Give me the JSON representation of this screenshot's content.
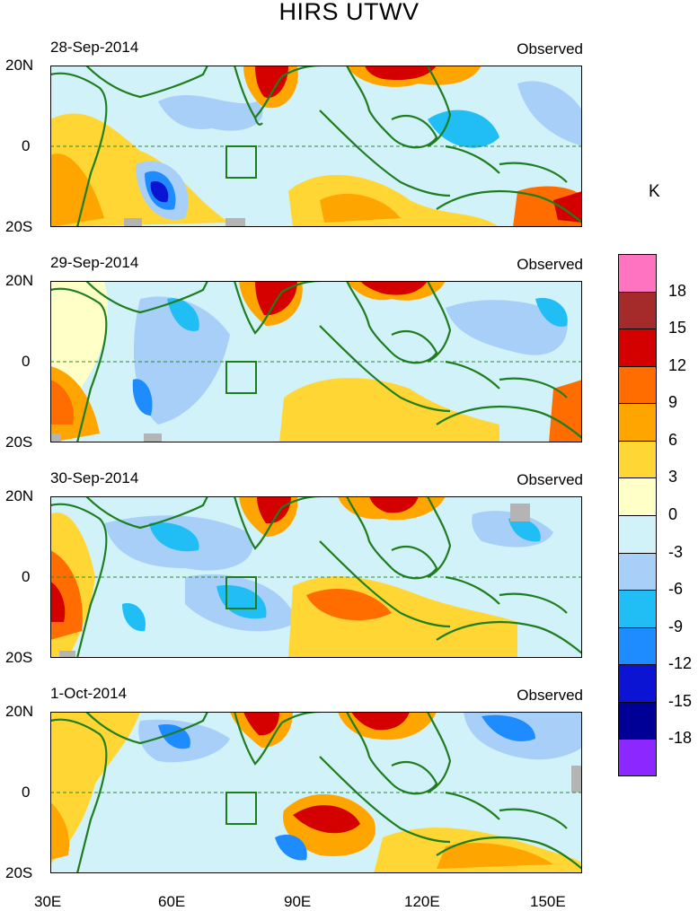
{
  "title": "HIRS UTWV",
  "unit": "K",
  "x_labels": [
    "30E",
    "60E",
    "90E",
    "120E",
    "150E"
  ],
  "y_labels": [
    "20N",
    "0",
    "20S"
  ],
  "panels": [
    {
      "date": "28-Sep-2014",
      "label": "Observed"
    },
    {
      "date": "29-Sep-2014",
      "label": "Observed"
    },
    {
      "date": "30-Sep-2014",
      "label": "Observed"
    },
    {
      "date": "1-Oct-2014",
      "label": "Observed"
    }
  ],
  "legend": {
    "labels": [
      "18",
      "15",
      "12",
      "9",
      "6",
      "3",
      "0",
      "-3",
      "-6",
      "-9",
      "-12",
      "-15",
      "-18"
    ],
    "colors": [
      "#ff73c0",
      "#a52a2a",
      "#d40000",
      "#ff6d00",
      "#ffa500",
      "#ffd633",
      "#ffffc8",
      "#d2f2fa",
      "#a8cff8",
      "#20bef5",
      "#1e8cff",
      "#0a14d2",
      "#000096",
      "#8c28ff"
    ]
  },
  "colors": {
    "coast": "#1e7d1e",
    "equator": "#2e8b2e",
    "missing": "#b4b4b4"
  }
}
